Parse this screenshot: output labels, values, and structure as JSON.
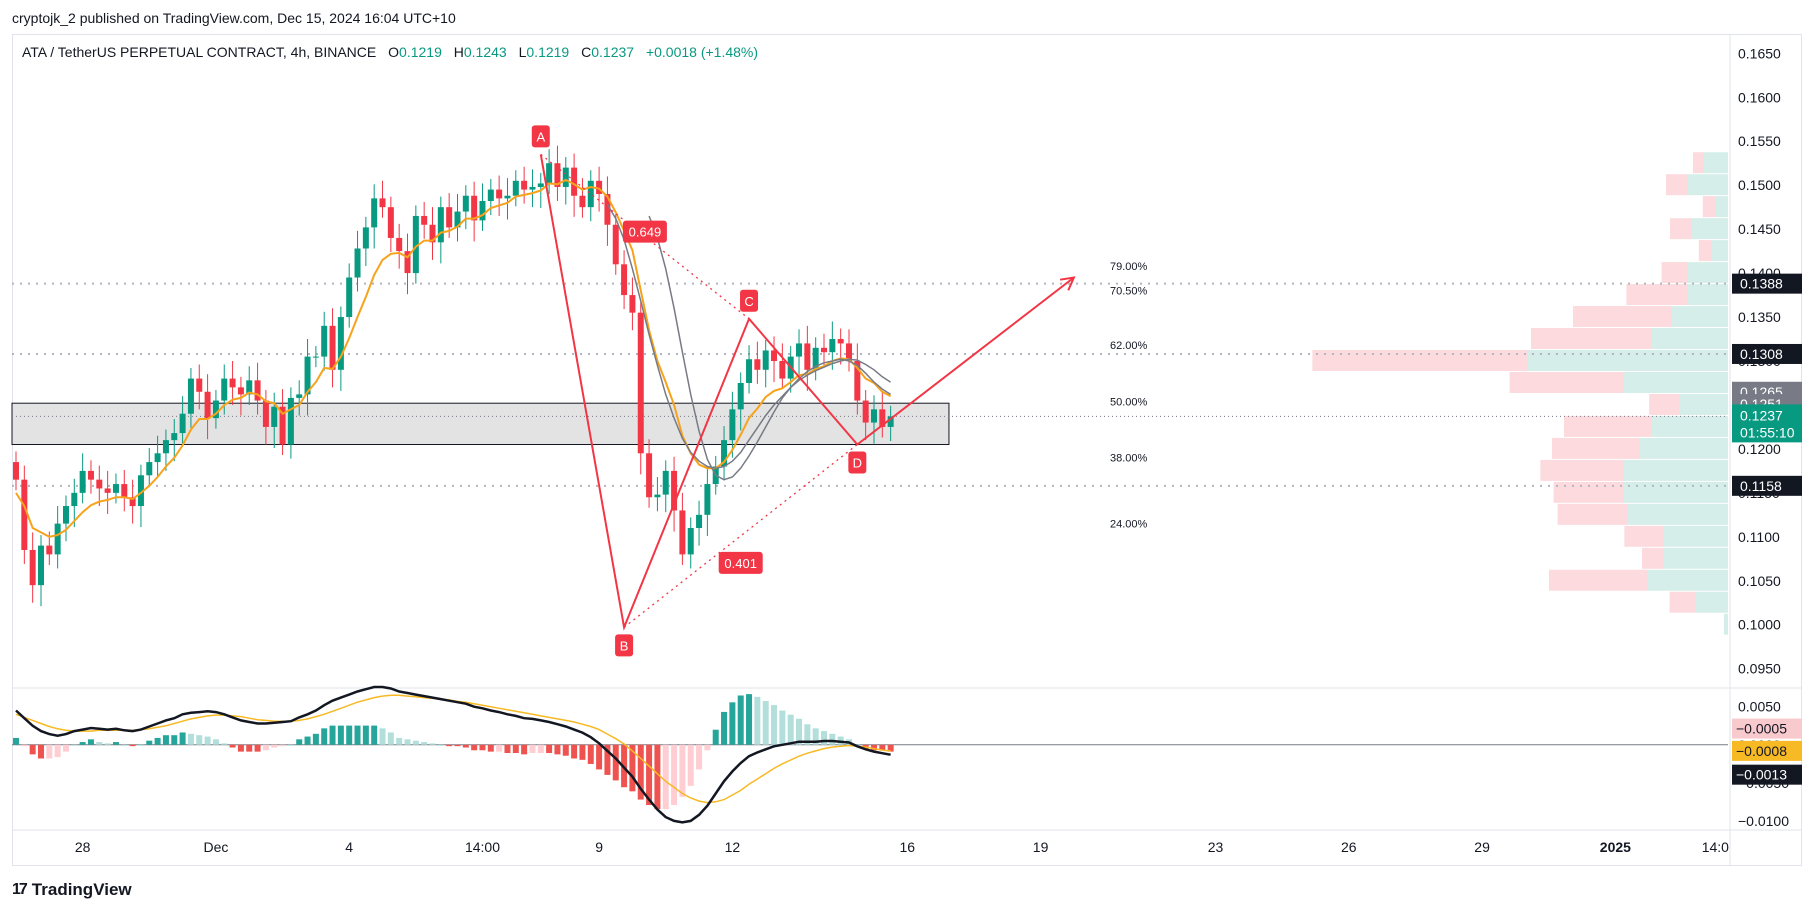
{
  "header": {
    "published": "cryptojk_2 published on TradingView.com, Dec 15, 2024 16:04 UTC+10"
  },
  "symbol": {
    "name": "ATA / TetherUS PERPETUAL CONTRACT, 4h, BINANCE",
    "o_label": "O",
    "o": "0.1219",
    "h_label": "H",
    "h": "0.1243",
    "l_label": "L",
    "l": "0.1219",
    "c_label": "C",
    "c": "0.1237",
    "change": "+0.0018 (+1.48%)"
  },
  "watermark": {
    "logo": "17",
    "text": "TradingView"
  },
  "colors": {
    "up": "#089981",
    "down": "#f23645",
    "ema_fast": "#f7a21b",
    "pattern": "#f23645",
    "sma": "#787b86"
  },
  "chart_data": {
    "type": "candlestick",
    "title": "ATA / TetherUS PERPETUAL CONTRACT, 4h, BINANCE",
    "y_ticks": [
      "0.1650",
      "0.1600",
      "0.1550",
      "0.1500",
      "0.1450",
      "0.1400",
      "0.1350",
      "0.1300",
      "0.1250",
      "0.1200",
      "0.1150",
      "0.1100",
      "0.1050",
      "0.1000",
      "0.0950"
    ],
    "y_tick_values": [
      0.165,
      0.16,
      0.155,
      0.15,
      0.145,
      0.14,
      0.135,
      0.13,
      0.125,
      0.12,
      0.115,
      0.11,
      0.105,
      0.1,
      0.095
    ],
    "x_ticks": [
      {
        "label": "28",
        "i": 8,
        "bold": false
      },
      {
        "label": "Dec",
        "i": 24,
        "bold": false
      },
      {
        "label": "4",
        "i": 40,
        "bold": false
      },
      {
        "label": "14:00",
        "i": 56,
        "bold": false
      },
      {
        "label": "9",
        "i": 70,
        "bold": false
      },
      {
        "label": "12",
        "i": 86,
        "bold": false
      },
      {
        "label": "16",
        "i": 107,
        "bold": false
      },
      {
        "label": "19",
        "i": 123,
        "bold": false
      },
      {
        "label": "23",
        "i": 144,
        "bold": false
      },
      {
        "label": "26",
        "i": 160,
        "bold": false
      },
      {
        "label": "29",
        "i": 176,
        "bold": false
      },
      {
        "label": "2025",
        "i": 192,
        "bold": true
      },
      {
        "label": "14:0",
        "i": 204,
        "bold": false
      }
    ],
    "closes": [
      0.1165,
      0.1085,
      0.1045,
      0.109,
      0.108,
      0.1115,
      0.1135,
      0.115,
      0.1175,
      0.1165,
      0.1155,
      0.115,
      0.116,
      0.1145,
      0.1135,
      0.117,
      0.1185,
      0.1195,
      0.121,
      0.1218,
      0.124,
      0.128,
      0.1265,
      0.1235,
      0.1255,
      0.128,
      0.127,
      0.1262,
      0.1278,
      0.1255,
      0.1225,
      0.1248,
      0.1205,
      0.1258,
      0.1262,
      0.1305,
      0.1305,
      0.134,
      0.129,
      0.135,
      0.1395,
      0.1428,
      0.1452,
      0.1485,
      0.1475,
      0.144,
      0.1425,
      0.14,
      0.1465,
      0.1455,
      0.1435,
      0.1475,
      0.1452,
      0.147,
      0.1488,
      0.146,
      0.1482,
      0.1495,
      0.1485,
      0.1488,
      0.1505,
      0.1495,
      0.1498,
      0.1502,
      0.1525,
      0.1498,
      0.152,
      0.1488,
      0.1475,
      0.1505,
      0.149,
      0.1455,
      0.141,
      0.1375,
      0.1355,
      0.1195,
      0.1145,
      0.1148,
      0.1175,
      0.113,
      0.108,
      0.111,
      0.1125,
      0.116,
      0.118,
      0.121,
      0.1245,
      0.1275,
      0.1302,
      0.129,
      0.1312,
      0.13,
      0.128,
      0.1305,
      0.132,
      0.129,
      0.1315,
      0.131,
      0.1325,
      0.132,
      0.13,
      0.1255,
      0.123,
      0.1245,
      0.1225,
      0.1237
    ],
    "ema_fast": [
      0.115,
      0.1135,
      0.111,
      0.1105,
      0.11,
      0.1102,
      0.1108,
      0.1118,
      0.1128,
      0.1136,
      0.114,
      0.1142,
      0.1145,
      0.1145,
      0.1143,
      0.115,
      0.1158,
      0.1168,
      0.118,
      0.119,
      0.1204,
      0.1222,
      0.1234,
      0.1234,
      0.124,
      0.125,
      0.1256,
      0.1258,
      0.1264,
      0.1262,
      0.1254,
      0.1252,
      0.124,
      0.1245,
      0.125,
      0.1265,
      0.1276,
      0.1292,
      0.1291,
      0.1305,
      0.1326,
      0.135,
      0.1373,
      0.1398,
      0.1415,
      0.1422,
      0.1423,
      0.1418,
      0.143,
      0.1437,
      0.1437,
      0.1446,
      0.1448,
      0.1453,
      0.1462,
      0.1462,
      0.1466,
      0.1474,
      0.1477,
      0.148,
      0.1487,
      0.1489,
      0.1491,
      0.1494,
      0.1502,
      0.1501,
      0.1506,
      0.1501,
      0.1495,
      0.1498,
      0.1496,
      0.1487,
      0.1469,
      0.1448,
      0.1426,
      0.138,
      0.1335,
      0.13,
      0.1276,
      0.125,
      0.1215,
      0.1195,
      0.1182,
      0.1178,
      0.1178,
      0.1185,
      0.1199,
      0.1216,
      0.1235,
      0.1246,
      0.1259,
      0.1266,
      0.1269,
      0.1276,
      0.1284,
      0.1285,
      0.1291,
      0.1294,
      0.13,
      0.1303,
      0.1302,
      0.1292,
      0.128,
      0.1275,
      0.1265,
      0.126
    ],
    "sma_grey": [
      0.1478,
      0.1462,
      0.1438,
      0.1405,
      0.1368,
      0.133,
      0.1295,
      0.1262,
      0.1235,
      0.1212,
      0.1196,
      0.1186,
      0.118,
      0.1178,
      0.118,
      0.1186,
      0.1196,
      0.121,
      0.1224,
      0.1238,
      0.125,
      0.126,
      0.127,
      0.1278,
      0.1284,
      0.1289,
      0.1293,
      0.1297,
      0.13,
      0.1302,
      0.1301,
      0.1296,
      0.129,
      0.1282,
      0.1276
    ],
    "sma_grey_start_index": 71,
    "sma_grey2": [
      0.1465,
      0.144,
      0.1405,
      0.136,
      0.131,
      0.1262,
      0.122,
      0.1188,
      0.117,
      0.1165,
      0.1168,
      0.1178,
      0.1192,
      0.1208,
      0.1225,
      0.1242,
      0.1258,
      0.127,
      0.128,
      0.1288,
      0.1294,
      0.1298,
      0.13,
      0.1302,
      0.13,
      0.1295,
      0.1286,
      0.1276,
      0.1268,
      0.1262
    ],
    "sma_grey2_start_index": 76,
    "harmonic": {
      "points": [
        {
          "label": "A",
          "i": 63,
          "price": 0.1535
        },
        {
          "label": "B",
          "i": 73,
          "price": 0.0997
        },
        {
          "label": "C",
          "i": 88,
          "price": 0.1348
        },
        {
          "label": "D",
          "i": 101,
          "price": 0.1205
        }
      ],
      "ratios": [
        {
          "label": "0.649"
        },
        {
          "label": "0.401"
        }
      ],
      "projection": {
        "to_i": 127,
        "price": 0.1395
      }
    },
    "zone": {
      "top": 0.1252,
      "bottom": 0.1205,
      "end_i": 112
    },
    "h_levels": [
      {
        "price": 0.1388,
        "label": "0.1388",
        "dotted": true
      },
      {
        "price": 0.1308,
        "label": "0.1308",
        "dotted": true
      },
      {
        "price": 0.1158,
        "label": "0.1158",
        "dotted": true
      },
      {
        "price": 0.1237,
        "label": "0.1237",
        "dotted": true,
        "fine": true
      }
    ],
    "fib_labels": [
      {
        "label": "79.00%",
        "price": 0.1408
      },
      {
        "label": "70.50%",
        "price": 0.138
      },
      {
        "label": "62.00%",
        "price": 0.1318
      },
      {
        "label": "50.00%",
        "price": 0.1254
      },
      {
        "label": "38.00%",
        "price": 0.119
      },
      {
        "label": "24.00%",
        "price": 0.1115
      }
    ],
    "price_tags": [
      {
        "label": "0.1388",
        "price": 0.1388,
        "bg": "#131722",
        "fg": "#ffffff"
      },
      {
        "label": "0.1308",
        "price": 0.1308,
        "bg": "#131722",
        "fg": "#ffffff"
      },
      {
        "label": "0.1265",
        "price": 0.1265,
        "bg": "#787b86",
        "fg": "#ffffff"
      },
      {
        "label": "0.1251",
        "price": 0.1251,
        "bg": "#787b86",
        "fg": "#ffffff"
      },
      {
        "label": "0.1158",
        "price": 0.1158,
        "bg": "#131722",
        "fg": "#ffffff"
      }
    ],
    "last_price": {
      "label": "0.1237",
      "timer": "01:55:10",
      "price": 0.1237,
      "bg": "#089981"
    },
    "volume_profile": [
      {
        "price": 0.1525,
        "up": 0.12,
        "down": 0.05
      },
      {
        "price": 0.15,
        "up": 0.2,
        "down": 0.1
      },
      {
        "price": 0.1475,
        "up": 0.06,
        "down": 0.06
      },
      {
        "price": 0.145,
        "up": 0.18,
        "down": 0.1
      },
      {
        "price": 0.1425,
        "up": 0.08,
        "down": 0.06
      },
      {
        "price": 0.14,
        "up": 0.2,
        "down": 0.12
      },
      {
        "price": 0.1375,
        "up": 0.2,
        "down": 0.28
      },
      {
        "price": 0.135,
        "up": 0.28,
        "down": 0.45
      },
      {
        "price": 0.1325,
        "up": 0.38,
        "down": 0.55
      },
      {
        "price": 0.13,
        "up": 1.0,
        "down": 0.98
      },
      {
        "price": 0.1275,
        "up": 0.52,
        "down": 0.52
      },
      {
        "price": 0.125,
        "up": 0.24,
        "down": 0.14
      },
      {
        "price": 0.1225,
        "up": 0.38,
        "down": 0.4
      },
      {
        "price": 0.12,
        "up": 0.44,
        "down": 0.4
      },
      {
        "price": 0.1175,
        "up": 0.52,
        "down": 0.38
      },
      {
        "price": 0.115,
        "up": 0.52,
        "down": 0.32
      },
      {
        "price": 0.1125,
        "up": 0.5,
        "down": 0.32
      },
      {
        "price": 0.11,
        "up": 0.32,
        "down": 0.18
      },
      {
        "price": 0.1075,
        "up": 0.32,
        "down": 0.1
      },
      {
        "price": 0.105,
        "up": 0.4,
        "down": 0.45
      },
      {
        "price": 0.1025,
        "up": 0.16,
        "down": 0.12
      },
      {
        "price": 0.1,
        "up": 0.02,
        "down": 0.0
      }
    ],
    "macd": {
      "y_ticks": [
        "0.0050",
        "0.0000",
        "−0.0050",
        "−0.0100"
      ],
      "y_tick_values": [
        0.005,
        0.0,
        -0.005,
        -0.01
      ],
      "tags": [
        {
          "label": "−0.0005",
          "value": -0.0005,
          "bg": "#f8c9cd",
          "fg": "#131722"
        },
        {
          "label": "−0.0008",
          "value": -0.0008,
          "bg": "#f7b924",
          "fg": "#131722"
        },
        {
          "label": "−0.0013",
          "value": -0.0013,
          "bg": "#131722",
          "fg": "#ffffff"
        }
      ],
      "macd_line": [
        0.0045,
        0.0035,
        0.0025,
        0.0018,
        0.0014,
        0.0012,
        0.0014,
        0.0018,
        0.002,
        0.0022,
        0.0021,
        0.002,
        0.0021,
        0.0019,
        0.0018,
        0.002,
        0.0024,
        0.0028,
        0.0032,
        0.0035,
        0.004,
        0.0042,
        0.0043,
        0.0044,
        0.0043,
        0.004,
        0.0036,
        0.0032,
        0.003,
        0.0028,
        0.0028,
        0.0029,
        0.003,
        0.0031,
        0.0036,
        0.004,
        0.0045,
        0.0052,
        0.0058,
        0.0062,
        0.0066,
        0.007,
        0.0073,
        0.0076,
        0.0076,
        0.0074,
        0.007,
        0.0068,
        0.0066,
        0.0064,
        0.0062,
        0.006,
        0.0058,
        0.0056,
        0.0054,
        0.005,
        0.0048,
        0.0045,
        0.0043,
        0.004,
        0.0038,
        0.0035,
        0.0034,
        0.0032,
        0.003,
        0.0027,
        0.0024,
        0.002,
        0.0016,
        0.001,
        0.0002,
        -0.0008,
        -0.0018,
        -0.003,
        -0.0042,
        -0.0058,
        -0.0072,
        -0.0085,
        -0.0095,
        -0.01,
        -0.0102,
        -0.01,
        -0.0092,
        -0.008,
        -0.0064,
        -0.0048,
        -0.0035,
        -0.0024,
        -0.0015,
        -0.001,
        -0.0006,
        -0.0002,
        -0.0,
        0.0002,
        0.0004,
        0.0004,
        0.0004,
        0.0005,
        0.0005,
        0.0004,
        0.0003,
        -0.0002,
        -0.0006,
        -0.0009,
        -0.0011,
        -0.0013
      ],
      "signal_line": [
        0.004,
        0.0036,
        0.0032,
        0.0028,
        0.0024,
        0.0021,
        0.0019,
        0.0018,
        0.0018,
        0.0018,
        0.0019,
        0.0019,
        0.0019,
        0.0019,
        0.0019,
        0.002,
        0.0021,
        0.0023,
        0.0025,
        0.0028,
        0.0031,
        0.0034,
        0.0036,
        0.0038,
        0.0039,
        0.0039,
        0.0038,
        0.0037,
        0.0035,
        0.0033,
        0.0032,
        0.0031,
        0.0031,
        0.0031,
        0.0032,
        0.0034,
        0.0037,
        0.004,
        0.0044,
        0.0048,
        0.0052,
        0.0056,
        0.0059,
        0.0062,
        0.0064,
        0.0065,
        0.0065,
        0.0064,
        0.0063,
        0.0062,
        0.0061,
        0.006,
        0.0059,
        0.0057,
        0.0056,
        0.0054,
        0.0052,
        0.005,
        0.0048,
        0.0046,
        0.0044,
        0.0042,
        0.004,
        0.0038,
        0.0036,
        0.0034,
        0.0032,
        0.003,
        0.0027,
        0.0024,
        0.002,
        0.0014,
        0.0008,
        0.0001,
        -0.0008,
        -0.0018,
        -0.0028,
        -0.0038,
        -0.0048,
        -0.0056,
        -0.0064,
        -0.007,
        -0.0074,
        -0.0076,
        -0.0075,
        -0.0072,
        -0.0066,
        -0.006,
        -0.0052,
        -0.0045,
        -0.0038,
        -0.0031,
        -0.0025,
        -0.002,
        -0.0015,
        -0.0011,
        -0.0008,
        -0.0005,
        -0.0003,
        -0.0002,
        -0.0001,
        -0.0002,
        -0.0003,
        -0.0005,
        -0.0007,
        -0.0008
      ]
    }
  }
}
